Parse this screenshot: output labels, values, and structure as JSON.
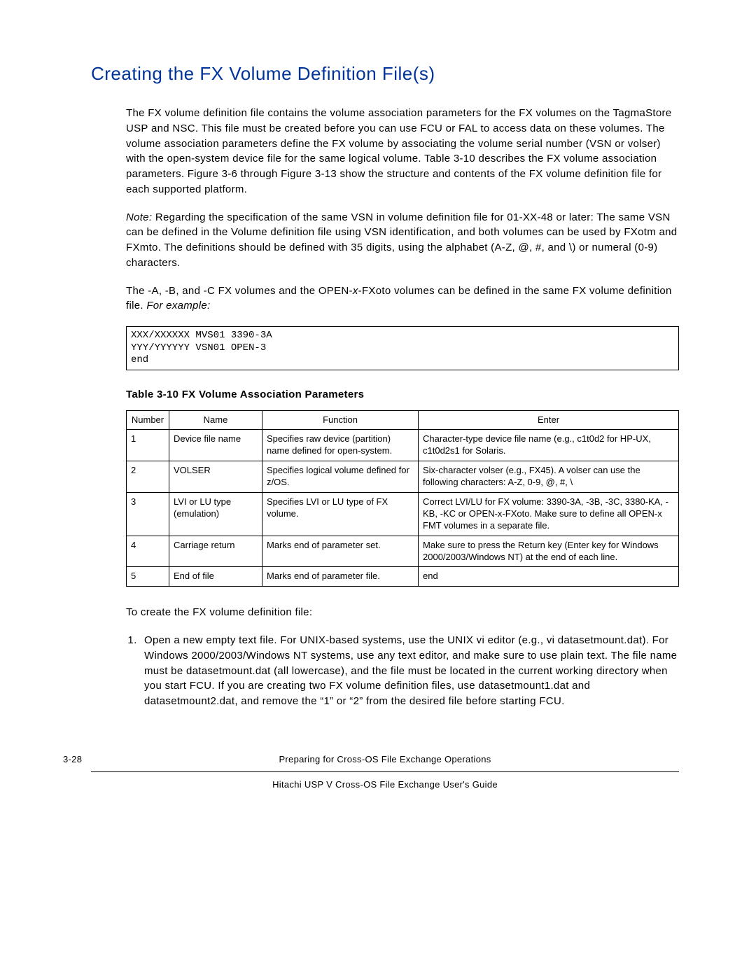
{
  "title": "Creating the FX Volume Definition File(s)",
  "para1": "The FX volume definition file contains the volume association parameters for the FX volumes on the TagmaStore USP and NSC. This file must be created before you can use FCU or FAL to access data on these volumes. The volume association parameters define the FX volume by associating the volume serial number (VSN or volser) with the open-system device file for the same logical volume. Table 3-10 describes the FX volume association parameters. Figure 3-6 through Figure 3-13 show the structure and contents of the FX volume definition file for each supported platform.",
  "note_label": "Note:",
  "note_text": " Regarding the specification of the same VSN in volume definition file for 01-XX-48 or later: The same VSN can be defined in the Volume definition file using VSN identification, and both volumes can be used by FXotm and FXmto. The definitions should be defined with 35 digits, using the alphabet (A-Z, @, #, and \\) or numeral (0-9) characters.",
  "para3_a": " The -A, -B, and -C FX volumes and the OPEN-",
  "para3_x": "x",
  "para3_b": "-FXoto volumes can be defined in the same FX volume definition file. ",
  "para3_example": "For example:",
  "code": "XXX/XXXXXX MVS01 3390-3A\nYYY/YYYYYY VSN01 OPEN-3\nend",
  "table_caption": "Table 3-10    FX Volume Association Parameters",
  "table": {
    "headers": [
      "Number",
      "Name",
      "Function",
      "Enter"
    ],
    "rows": [
      {
        "num": "1",
        "name": "Device file name",
        "func": "Specifies raw device (partition) name defined for open-system.",
        "enter": "Character-type device file name (e.g., c1t0d2 for HP-UX, c1t0d2s1 for Solaris."
      },
      {
        "num": "2",
        "name": "VOLSER",
        "func": "Specifies logical volume defined for z/OS.",
        "enter": "Six-character volser (e.g., FX45). A volser can use the following characters: A-Z, 0-9, @, #, \\"
      },
      {
        "num": "3",
        "name": "LVI or LU type (emulation)",
        "func": "Specifies LVI or LU type of FX volume.",
        "enter_a": "Correct LVI/LU for FX volume: 3390-3A, -3B, -3C, 3380-KA, -KB, -KC or OPEN-",
        "enter_x1": "x",
        "enter_b": "-FXoto. Make sure to define all OPEN-",
        "enter_x2": "x",
        "enter_c": " FMT volumes in a separate file."
      },
      {
        "num": "4",
        "name": "Carriage return",
        "func": "Marks end of parameter set.",
        "enter": "Make sure to press the Return key (Enter key for Windows 2000/2003/Windows NT) at the end of each line."
      },
      {
        "num": "5",
        "name": "End of file",
        "func": "Marks end of parameter file.",
        "enter": "end"
      }
    ]
  },
  "para_after_table": "To create the FX volume definition file:",
  "step1_a": "Open a new empty text file. For UNIX-based systems, use the UNIX vi editor (e.g., ",
  "step1_cmd": "vi datasetmount.dat",
  "step1_b": "). For Windows 2000/2003/Windows NT systems, use any text editor, and make sure to use plain text. The file name must be ",
  "step1_file": "datasetmount.dat",
  "step1_c": " (all lowercase), and the file must be located in the current working directory when you start FCU. If you are creating two FX volume definition files, use ",
  "step1_file1": "datasetmount1.dat",
  "step1_d": " and ",
  "step1_file2": "datasetmount2.dat",
  "step1_e": ", and remove the “1” or “2” from the desired file before starting FCU.",
  "footer": {
    "pagenum": "3-28",
    "line1": "Preparing for Cross-OS File Exchange Operations",
    "line2": "Hitachi USP V Cross-OS File Exchange User's Guide"
  }
}
